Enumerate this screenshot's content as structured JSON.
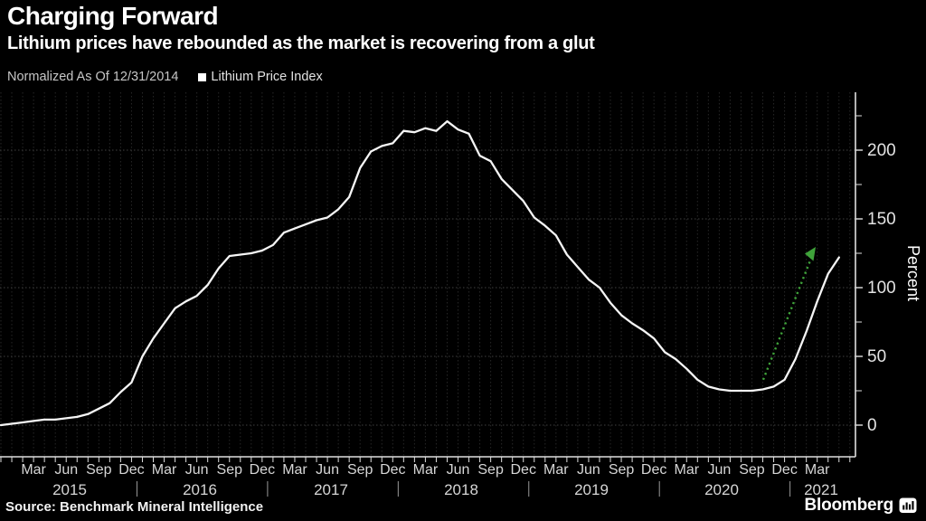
{
  "header": {
    "title": "Charging Forward",
    "subtitle": "Lithium prices have rebounded as the market is recovering from a glut"
  },
  "legend": {
    "note": "Normalized As Of 12/31/2014",
    "series_label": "Lithium Price Index"
  },
  "source": "Source: Benchmark Mineral Intelligence",
  "brand": "Bloomberg",
  "colors": {
    "background": "#000000",
    "line": "#f5f5f5",
    "grid_vertical": "#272727",
    "grid_horizontal": "#3f3f3f",
    "axis": "#e0e0e0",
    "tick_label": "#e3e3e3",
    "month_label": "#d6d6d6",
    "year_label": "#d6d6d6",
    "arrow_green": "#3fa33a"
  },
  "chart_data": {
    "type": "line",
    "title": "Charging Forward",
    "ylabel": "Percent",
    "grid": "dotted",
    "legend_position": "top-left",
    "normalized_as_of": "12/31/2014",
    "x_unit": "month",
    "x_start": "2014-12",
    "x_end": "2021-05",
    "ylim": [
      -23,
      242
    ],
    "y_ticks": [
      0,
      50,
      100,
      150,
      200
    ],
    "y_minor_ticks": [
      25,
      75,
      125,
      175,
      225
    ],
    "x_tick_months": [
      "Mar",
      "Jun",
      "Sep",
      "Dec"
    ],
    "years": [
      "2015",
      "2016",
      "2017",
      "2018",
      "2019",
      "2020",
      "2021"
    ],
    "series": [
      {
        "name": "Lithium Price Index",
        "unit": "Percent",
        "start_month": "2014-12",
        "values": [
          0,
          1,
          2,
          3,
          4,
          4,
          5,
          6,
          8,
          12,
          16,
          24,
          31,
          50,
          63,
          74,
          85,
          90,
          94,
          102,
          114,
          123,
          124,
          125,
          127,
          131,
          140,
          143,
          146,
          149,
          151,
          157,
          166,
          187,
          199,
          203,
          205,
          214,
          213,
          216,
          214,
          221,
          215,
          212,
          196,
          192,
          179,
          171,
          163,
          151,
          145,
          138,
          124,
          115,
          106,
          100,
          89,
          80,
          74,
          69,
          63,
          53,
          48,
          41,
          33,
          28,
          26,
          25,
          25,
          25,
          26,
          28,
          33,
          48,
          68,
          90,
          110,
          122
        ]
      }
    ],
    "annotation": {
      "type": "arrow",
      "style": "dotted",
      "color": "#3fa33a",
      "from": {
        "month": "2020-10",
        "value": 33
      },
      "to": {
        "month": "2021-03",
        "value": 128
      },
      "meaning": "rebound highlight"
    }
  }
}
